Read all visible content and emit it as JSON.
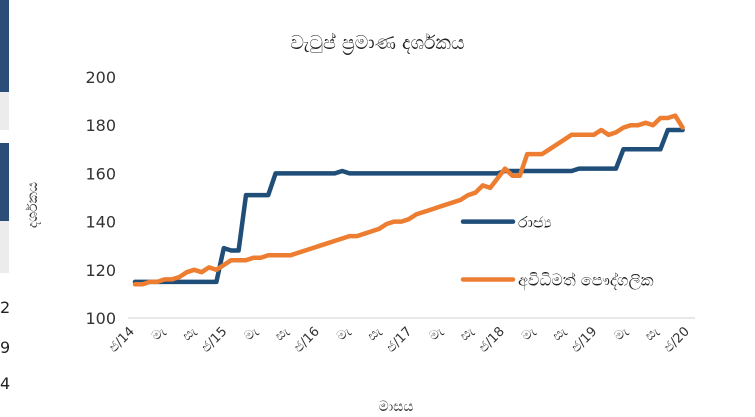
{
  "edge_fragments": [
    "2",
    "9",
    "4"
  ],
  "chart_data": {
    "type": "line",
    "title": "වැටුප් ප්‍රමාණ දර්ශකය",
    "xlabel": "මාසය",
    "ylabel": "දර්ශකය",
    "ylim": [
      100,
      200
    ],
    "yticks": [
      100,
      120,
      140,
      160,
      180,
      200
    ],
    "grid": false,
    "legend_position": "right",
    "x_tick_labels": [
      "ජ/14",
      "මැ",
      "සැ",
      "ජ/15",
      "මැ",
      "සැ",
      "ජ/16",
      "මැ",
      "සැ",
      "ජ/17",
      "මැ",
      "සැ",
      "ජ/18",
      "මැ",
      "සැ",
      "ජ/19",
      "මැ",
      "සැ",
      "ජ/20"
    ],
    "x_range": [
      0,
      75
    ],
    "series": [
      {
        "name": "රාජ්‍ය",
        "color": "#1f4e79",
        "points": [
          [
            0,
            115
          ],
          [
            1,
            115
          ],
          [
            2,
            115
          ],
          [
            3,
            115
          ],
          [
            4,
            115
          ],
          [
            5,
            115
          ],
          [
            6,
            115
          ],
          [
            7,
            115
          ],
          [
            8,
            115
          ],
          [
            9,
            115
          ],
          [
            10,
            115
          ],
          [
            11,
            115
          ],
          [
            12,
            129
          ],
          [
            13,
            128
          ],
          [
            14,
            128
          ],
          [
            15,
            151
          ],
          [
            16,
            151
          ],
          [
            17,
            151
          ],
          [
            18,
            151
          ],
          [
            19,
            160
          ],
          [
            20,
            160
          ],
          [
            21,
            160
          ],
          [
            22,
            160
          ],
          [
            23,
            160
          ],
          [
            24,
            160
          ],
          [
            25,
            160
          ],
          [
            26,
            160
          ],
          [
            27,
            160
          ],
          [
            28,
            161
          ],
          [
            29,
            160
          ],
          [
            30,
            160
          ],
          [
            31,
            160
          ],
          [
            32,
            160
          ],
          [
            33,
            160
          ],
          [
            34,
            160
          ],
          [
            35,
            160
          ],
          [
            36,
            160
          ],
          [
            37,
            160
          ],
          [
            38,
            160
          ],
          [
            39,
            160
          ],
          [
            40,
            160
          ],
          [
            41,
            160
          ],
          [
            42,
            160
          ],
          [
            43,
            160
          ],
          [
            44,
            160
          ],
          [
            45,
            160
          ],
          [
            46,
            160
          ],
          [
            47,
            160
          ],
          [
            48,
            160
          ],
          [
            49,
            160
          ],
          [
            50,
            161
          ],
          [
            51,
            161
          ],
          [
            52,
            161
          ],
          [
            53,
            161
          ],
          [
            54,
            161
          ],
          [
            55,
            161
          ],
          [
            56,
            161
          ],
          [
            57,
            161
          ],
          [
            58,
            161
          ],
          [
            59,
            161
          ],
          [
            60,
            162
          ],
          [
            61,
            162
          ],
          [
            62,
            162
          ],
          [
            63,
            162
          ],
          [
            64,
            162
          ],
          [
            65,
            162
          ],
          [
            66,
            170
          ],
          [
            67,
            170
          ],
          [
            68,
            170
          ],
          [
            69,
            170
          ],
          [
            70,
            170
          ],
          [
            71,
            170
          ],
          [
            72,
            178
          ],
          [
            73,
            178
          ],
          [
            74,
            178
          ]
        ]
      },
      {
        "name": "අවිධිමත් පෞද්ගලික",
        "color": "#ed7d31",
        "points": [
          [
            0,
            114
          ],
          [
            1,
            114
          ],
          [
            2,
            115
          ],
          [
            3,
            115
          ],
          [
            4,
            116
          ],
          [
            5,
            116
          ],
          [
            6,
            117
          ],
          [
            7,
            119
          ],
          [
            8,
            120
          ],
          [
            9,
            119
          ],
          [
            10,
            121
          ],
          [
            11,
            120
          ],
          [
            12,
            122
          ],
          [
            13,
            124
          ],
          [
            14,
            124
          ],
          [
            15,
            124
          ],
          [
            16,
            125
          ],
          [
            17,
            125
          ],
          [
            18,
            126
          ],
          [
            19,
            126
          ],
          [
            20,
            126
          ],
          [
            21,
            126
          ],
          [
            22,
            127
          ],
          [
            23,
            128
          ],
          [
            24,
            129
          ],
          [
            25,
            130
          ],
          [
            26,
            131
          ],
          [
            27,
            132
          ],
          [
            28,
            133
          ],
          [
            29,
            134
          ],
          [
            30,
            134
          ],
          [
            31,
            135
          ],
          [
            32,
            136
          ],
          [
            33,
            137
          ],
          [
            34,
            139
          ],
          [
            35,
            140
          ],
          [
            36,
            140
          ],
          [
            37,
            141
          ],
          [
            38,
            143
          ],
          [
            39,
            144
          ],
          [
            40,
            145
          ],
          [
            41,
            146
          ],
          [
            42,
            147
          ],
          [
            43,
            148
          ],
          [
            44,
            149
          ],
          [
            45,
            151
          ],
          [
            46,
            152
          ],
          [
            47,
            155
          ],
          [
            48,
            154
          ],
          [
            49,
            158
          ],
          [
            50,
            162
          ],
          [
            51,
            159
          ],
          [
            52,
            159
          ],
          [
            53,
            168
          ],
          [
            54,
            168
          ],
          [
            55,
            168
          ],
          [
            56,
            170
          ],
          [
            57,
            172
          ],
          [
            58,
            174
          ],
          [
            59,
            176
          ],
          [
            60,
            176
          ],
          [
            61,
            176
          ],
          [
            62,
            176
          ],
          [
            63,
            178
          ],
          [
            64,
            176
          ],
          [
            65,
            177
          ],
          [
            66,
            179
          ],
          [
            67,
            180
          ],
          [
            68,
            180
          ],
          [
            69,
            181
          ],
          [
            70,
            180
          ],
          [
            71,
            183
          ],
          [
            72,
            183
          ],
          [
            73,
            184
          ],
          [
            74,
            179
          ]
        ]
      }
    ]
  }
}
